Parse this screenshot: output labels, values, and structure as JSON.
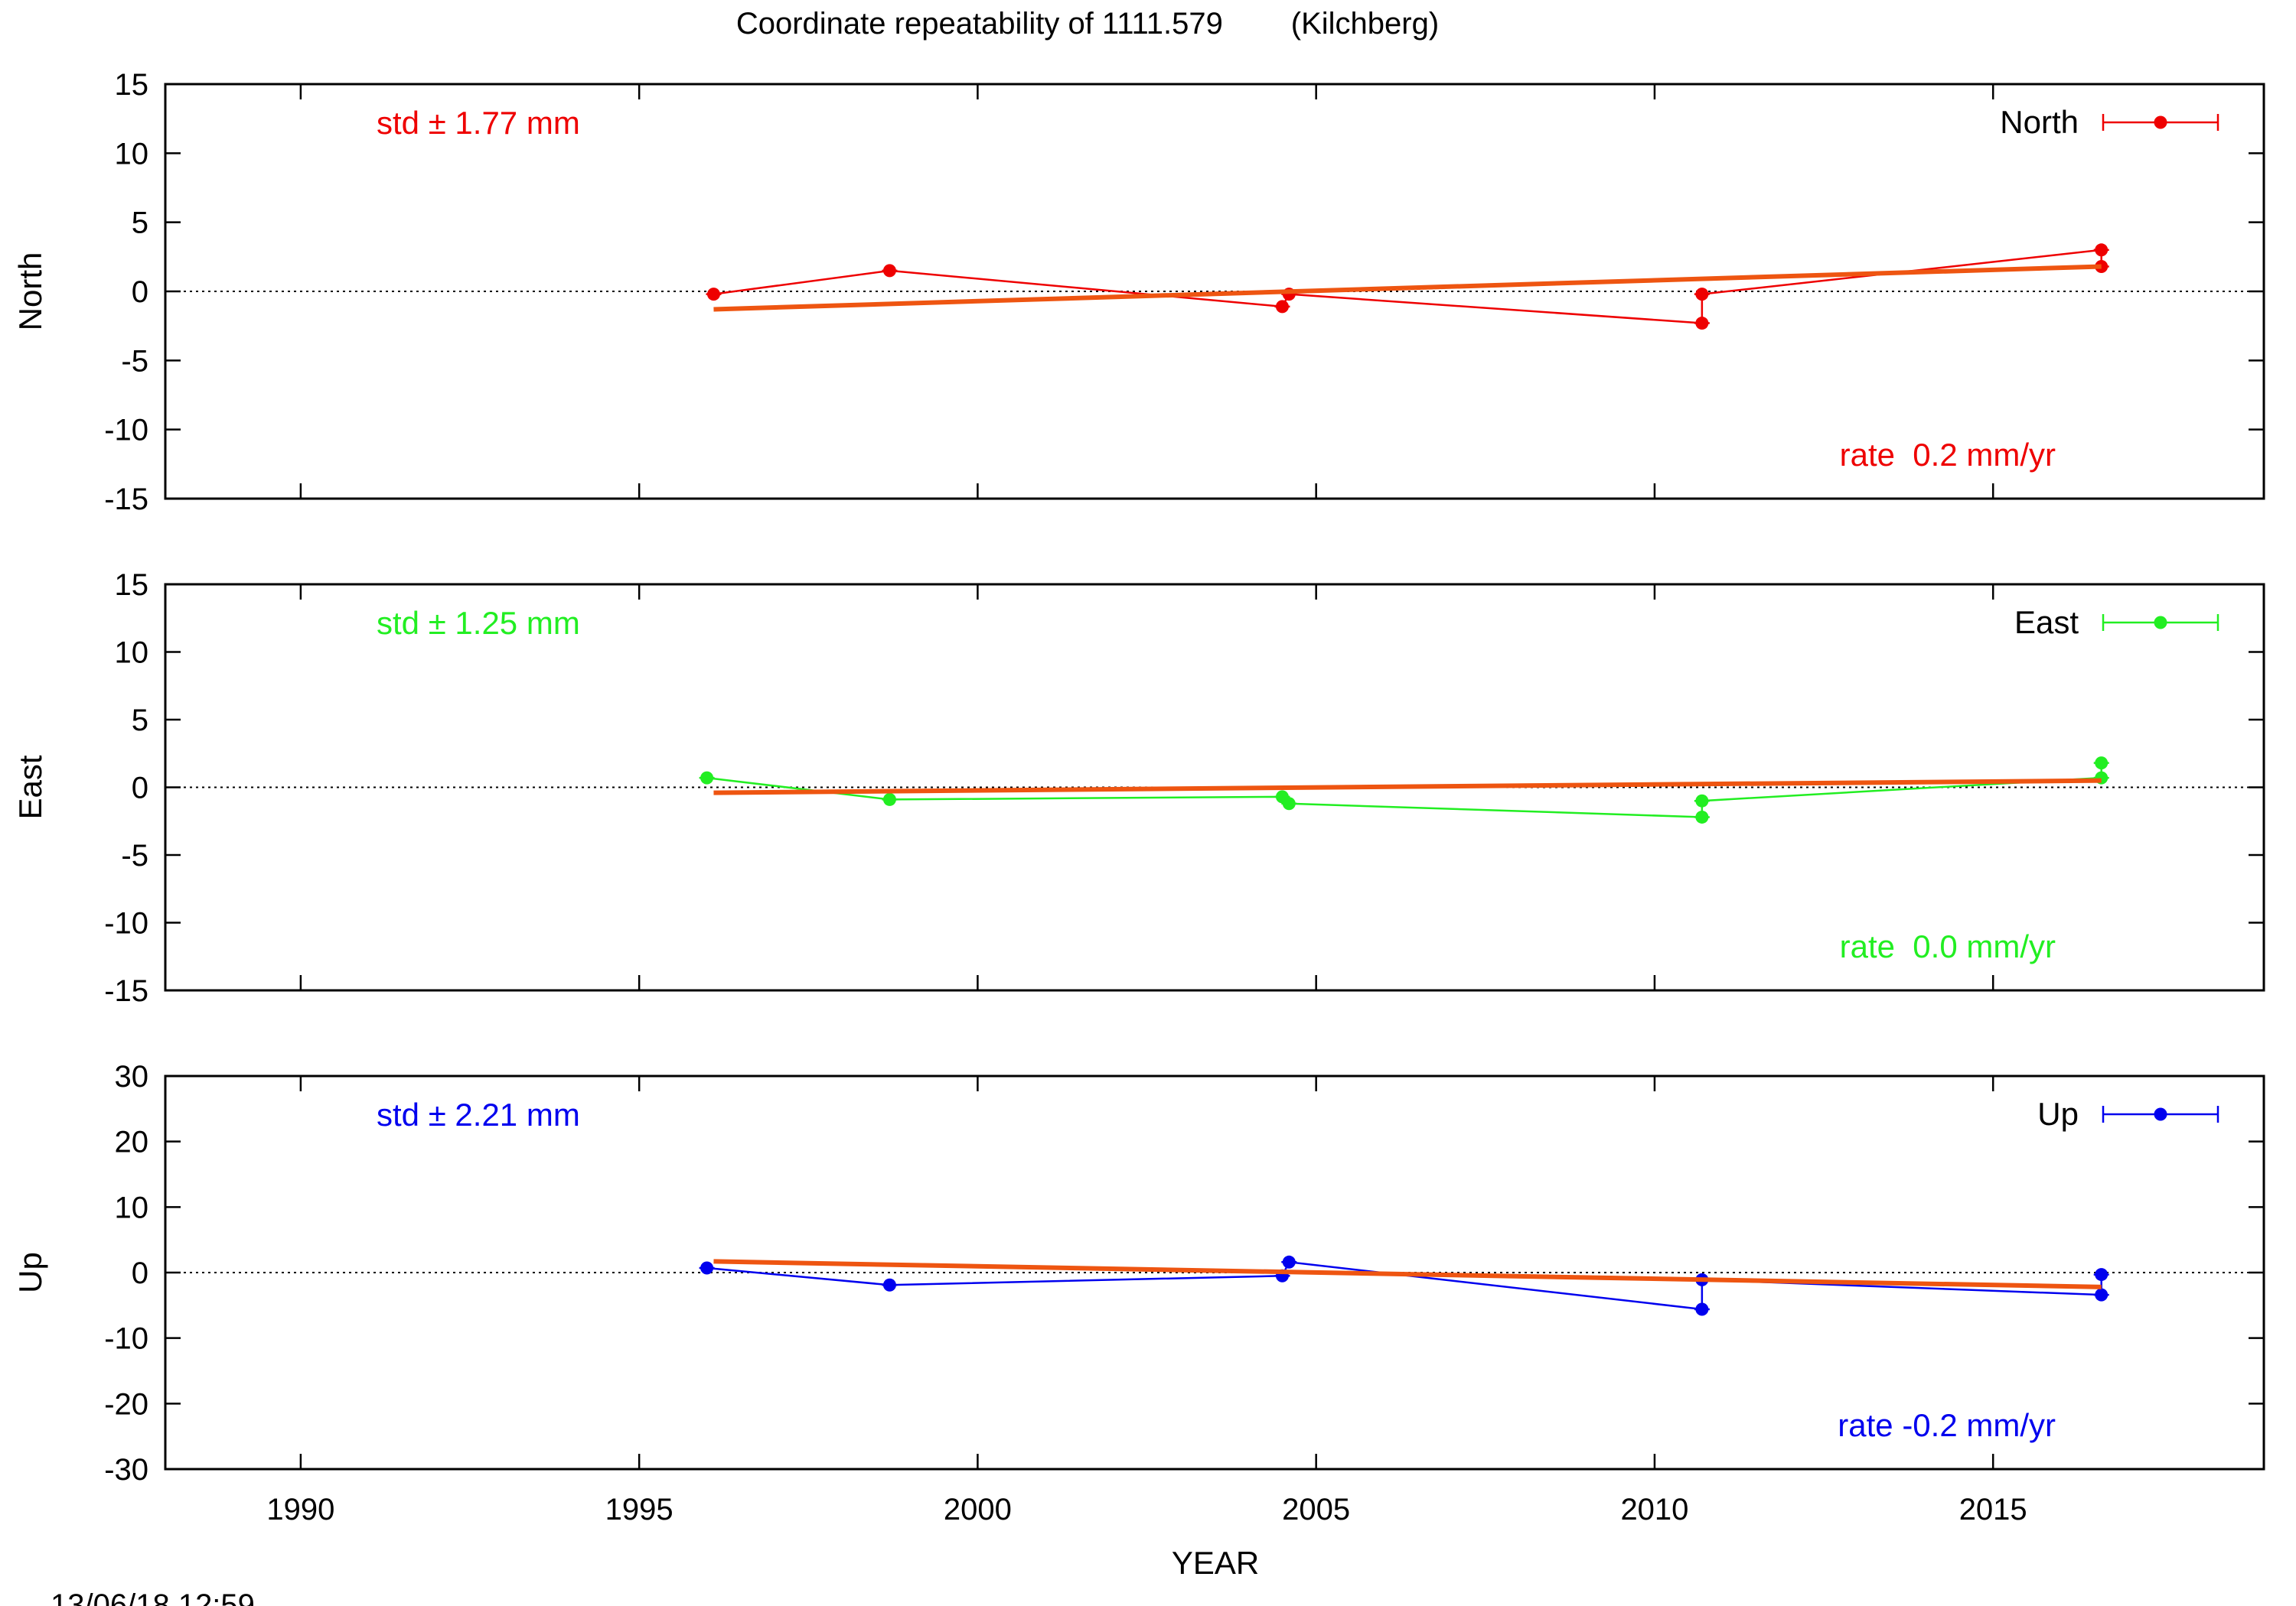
{
  "title": "Coordinate repeatability of 1111.579        (Kilchberg)",
  "timestamp": "13/06/18 12:59",
  "chart_data": {
    "type": "line",
    "xlabel": "YEAR",
    "xlim": [
      1988,
      2019
    ],
    "xticks": [
      1990,
      1995,
      2000,
      2005,
      2010,
      2015
    ],
    "trend_color": "#ee5511",
    "panels": [
      {
        "key": "north",
        "ylabel": "North",
        "legend": "North",
        "color": "#ee0000",
        "ylim": [
          -15,
          15
        ],
        "yticks": [
          15,
          10,
          5,
          0,
          -5,
          -10,
          -15
        ],
        "std_text": "std ± 1.77 mm",
        "rate_text": "rate  0.2 mm/yr",
        "points": [
          [
            1996.1,
            -0.2
          ],
          [
            1998.7,
            1.5
          ],
          [
            2004.5,
            -1.1
          ],
          [
            2004.6,
            -0.2
          ],
          [
            2010.7,
            -2.3
          ],
          [
            2010.7,
            -0.2
          ],
          [
            2016.6,
            3.0
          ],
          [
            2016.6,
            1.8
          ]
        ],
        "trend": [
          [
            1996.1,
            -1.3
          ],
          [
            2016.6,
            1.8
          ]
        ]
      },
      {
        "key": "east",
        "ylabel": "East",
        "legend": "East",
        "color": "#22ee22",
        "ylim": [
          -15,
          15
        ],
        "yticks": [
          15,
          10,
          5,
          0,
          -5,
          -10,
          -15
        ],
        "std_text": "std ± 1.25 mm",
        "rate_text": "rate  0.0 mm/yr",
        "points": [
          [
            1996.0,
            0.7
          ],
          [
            1998.7,
            -0.9
          ],
          [
            2004.5,
            -0.7
          ],
          [
            2004.6,
            -1.2
          ],
          [
            2010.7,
            -2.2
          ],
          [
            2010.7,
            -1.0
          ],
          [
            2016.6,
            0.7
          ],
          [
            2016.6,
            1.8
          ]
        ],
        "trend": [
          [
            1996.1,
            -0.4
          ],
          [
            2016.6,
            0.5
          ]
        ]
      },
      {
        "key": "up",
        "ylabel": "Up",
        "legend": "Up",
        "color": "#0000ee",
        "ylim": [
          -30,
          30
        ],
        "yticks": [
          30,
          20,
          10,
          0,
          -10,
          -20,
          -30
        ],
        "std_text": "std ± 2.21 mm",
        "rate_text": "rate -0.2 mm/yr",
        "points": [
          [
            1996.0,
            0.7
          ],
          [
            1998.7,
            -1.9
          ],
          [
            2004.5,
            -0.5
          ],
          [
            2004.6,
            1.6
          ],
          [
            2010.7,
            -5.6
          ],
          [
            2010.7,
            -1.1
          ],
          [
            2016.6,
            -3.4
          ],
          [
            2016.6,
            -0.3
          ]
        ],
        "trend": [
          [
            1996.1,
            1.7
          ],
          [
            2016.6,
            -2.2
          ]
        ]
      }
    ]
  }
}
